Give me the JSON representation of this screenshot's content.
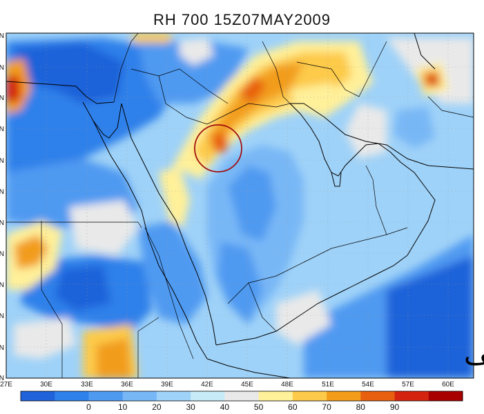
{
  "title": "RH 700 15Z07MAY2009",
  "watermark": "مهب الهيف",
  "lon_labels": [
    "27E",
    "30E",
    "33E",
    "36E",
    "39E",
    "42E",
    "45E",
    "48E",
    "51E",
    "54E",
    "57E",
    "60E"
  ],
  "lat_labels": [
    "N",
    "N",
    "N",
    "N",
    "N",
    "N",
    "N",
    "N",
    "N",
    "N",
    "N",
    "N"
  ],
  "colorbar": {
    "labels": [
      "0",
      "10",
      "20",
      "30",
      "40",
      "50",
      "60",
      "70",
      "80",
      "90"
    ],
    "colors": [
      "#1f62d9",
      "#2e80ea",
      "#4f9af1",
      "#78b7f6",
      "#9fd2f8",
      "#c8ecf7",
      "#e9e9e9",
      "#fff09a",
      "#fdca4a",
      "#f29c1a",
      "#e8600f",
      "#d42410",
      "#a80000"
    ]
  },
  "map": {
    "colors": {
      "dark_blue": "#1f62d9",
      "blue": "#2e80ea",
      "mid_blue": "#4f9af1",
      "light_blue": "#78b7f6",
      "pale_blue": "#9fd2f8",
      "cyan": "#c8ecf7",
      "gray": "#e9e9e9",
      "yellow": "#fff09a",
      "gold": "#fdca4a",
      "orange": "#f29c1a",
      "red_orange": "#e8600f",
      "red": "#d42410",
      "dark_red": "#a80000",
      "circle": "#a01010"
    }
  }
}
